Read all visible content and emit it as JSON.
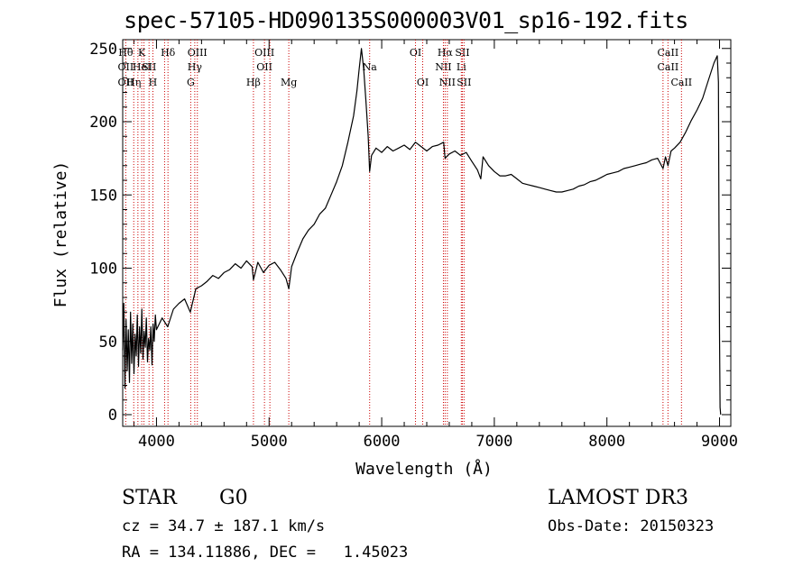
{
  "chart_data": {
    "type": "line",
    "title": "spec-57105-HD090135S000003V01_sp16-192.fits",
    "xlabel": "Wavelength (Å)",
    "ylabel": "Flux (relative)",
    "xlim": [
      3700,
      9100
    ],
    "ylim": [
      -8,
      256
    ],
    "xticks": [
      4000,
      5000,
      6000,
      7000,
      8000,
      9000
    ],
    "yticks": [
      0,
      50,
      100,
      150,
      200,
      250
    ],
    "grid": false,
    "series": [
      {
        "points": [
          [
            3700,
            44
          ],
          [
            3710,
            76
          ],
          [
            3720,
            18
          ],
          [
            3730,
            65
          ],
          [
            3740,
            30
          ],
          [
            3750,
            58
          ],
          [
            3760,
            22
          ],
          [
            3770,
            70
          ],
          [
            3780,
            35
          ],
          [
            3790,
            62
          ],
          [
            3800,
            28
          ],
          [
            3810,
            55
          ],
          [
            3820,
            40
          ],
          [
            3830,
            68
          ],
          [
            3840,
            33
          ],
          [
            3850,
            60
          ],
          [
            3860,
            42
          ],
          [
            3870,
            72
          ],
          [
            3880,
            38
          ],
          [
            3890,
            57
          ],
          [
            3900,
            46
          ],
          [
            3910,
            66
          ],
          [
            3920,
            36
          ],
          [
            3930,
            52
          ],
          [
            3940,
            44
          ],
          [
            3950,
            60
          ],
          [
            3960,
            34
          ],
          [
            3970,
            62
          ],
          [
            3980,
            50
          ],
          [
            3990,
            68
          ],
          [
            4000,
            58
          ],
          [
            4050,
            66
          ],
          [
            4100,
            60
          ],
          [
            4150,
            72
          ],
          [
            4200,
            76
          ],
          [
            4250,
            79
          ],
          [
            4300,
            70
          ],
          [
            4350,
            86
          ],
          [
            4400,
            88
          ],
          [
            4450,
            91
          ],
          [
            4500,
            95
          ],
          [
            4550,
            93
          ],
          [
            4600,
            97
          ],
          [
            4650,
            99
          ],
          [
            4700,
            103
          ],
          [
            4750,
            100
          ],
          [
            4800,
            105
          ],
          [
            4850,
            101
          ],
          [
            4861,
            92
          ],
          [
            4900,
            104
          ],
          [
            4950,
            97
          ],
          [
            5000,
            102
          ],
          [
            5050,
            104
          ],
          [
            5100,
            99
          ],
          [
            5150,
            93
          ],
          [
            5175,
            86
          ],
          [
            5200,
            101
          ],
          [
            5250,
            111
          ],
          [
            5300,
            120
          ],
          [
            5350,
            126
          ],
          [
            5400,
            130
          ],
          [
            5450,
            137
          ],
          [
            5500,
            141
          ],
          [
            5550,
            150
          ],
          [
            5600,
            159
          ],
          [
            5650,
            170
          ],
          [
            5700,
            186
          ],
          [
            5750,
            204
          ],
          [
            5780,
            221
          ],
          [
            5800,
            236
          ],
          [
            5820,
            250
          ],
          [
            5840,
            236
          ],
          [
            5860,
            214
          ],
          [
            5880,
            190
          ],
          [
            5893,
            166
          ],
          [
            5910,
            177
          ],
          [
            5950,
            182
          ],
          [
            6000,
            179
          ],
          [
            6050,
            183
          ],
          [
            6100,
            180
          ],
          [
            6150,
            182
          ],
          [
            6200,
            184
          ],
          [
            6250,
            181
          ],
          [
            6300,
            186
          ],
          [
            6350,
            183
          ],
          [
            6400,
            180
          ],
          [
            6450,
            183
          ],
          [
            6500,
            184
          ],
          [
            6550,
            186
          ],
          [
            6563,
            175
          ],
          [
            6600,
            178
          ],
          [
            6650,
            180
          ],
          [
            6700,
            177
          ],
          [
            6750,
            179
          ],
          [
            6800,
            173
          ],
          [
            6850,
            167
          ],
          [
            6880,
            161
          ],
          [
            6900,
            176
          ],
          [
            6950,
            170
          ],
          [
            7000,
            166
          ],
          [
            7050,
            163
          ],
          [
            7100,
            163
          ],
          [
            7150,
            164
          ],
          [
            7200,
            161
          ],
          [
            7250,
            158
          ],
          [
            7300,
            157
          ],
          [
            7350,
            156
          ],
          [
            7400,
            155
          ],
          [
            7450,
            154
          ],
          [
            7500,
            153
          ],
          [
            7550,
            152
          ],
          [
            7600,
            152
          ],
          [
            7650,
            153
          ],
          [
            7700,
            154
          ],
          [
            7750,
            156
          ],
          [
            7800,
            157
          ],
          [
            7850,
            159
          ],
          [
            7900,
            160
          ],
          [
            7950,
            162
          ],
          [
            8000,
            164
          ],
          [
            8050,
            165
          ],
          [
            8100,
            166
          ],
          [
            8150,
            168
          ],
          [
            8200,
            169
          ],
          [
            8250,
            170
          ],
          [
            8300,
            171
          ],
          [
            8350,
            172
          ],
          [
            8400,
            174
          ],
          [
            8450,
            175
          ],
          [
            8498,
            168
          ],
          [
            8520,
            176
          ],
          [
            8542,
            170
          ],
          [
            8570,
            180
          ],
          [
            8600,
            182
          ],
          [
            8650,
            186
          ],
          [
            8700,
            193
          ],
          [
            8750,
            201
          ],
          [
            8800,
            208
          ],
          [
            8850,
            216
          ],
          [
            8900,
            228
          ],
          [
            8950,
            240
          ],
          [
            8980,
            245
          ],
          [
            8990,
            227
          ],
          [
            8995,
            128
          ],
          [
            9000,
            55
          ],
          [
            9005,
            5
          ],
          [
            9010,
            0
          ]
        ]
      }
    ],
    "line_markers": [
      {
        "wl": 3727,
        "labels": [
          "Hθ",
          "OII",
          "OII"
        ]
      },
      {
        "wl": 3798,
        "labels": [
          "",
          "",
          "Hη"
        ]
      },
      {
        "wl": 3835,
        "labels": [
          "",
          "",
          ""
        ]
      },
      {
        "wl": 3869,
        "labels": [
          "K",
          "HeI",
          ""
        ]
      },
      {
        "wl": 3889,
        "labels": [
          "",
          "",
          ""
        ]
      },
      {
        "wl": 3934,
        "labels": [
          "",
          "SII",
          ""
        ]
      },
      {
        "wl": 3968,
        "labels": [
          "",
          "",
          "H"
        ]
      },
      {
        "wl": 4072,
        "labels": [
          "",
          "",
          ""
        ]
      },
      {
        "wl": 4102,
        "labels": [
          "Hδ",
          "",
          ""
        ]
      },
      {
        "wl": 4304,
        "labels": [
          "",
          "",
          "G"
        ]
      },
      {
        "wl": 4340,
        "labels": [
          "",
          "Hγ",
          ""
        ]
      },
      {
        "wl": 4363,
        "labels": [
          "OIII",
          "",
          ""
        ]
      },
      {
        "wl": 4861,
        "labels": [
          "",
          "",
          "Hβ"
        ]
      },
      {
        "wl": 4959,
        "labels": [
          "OIII",
          "OII",
          ""
        ]
      },
      {
        "wl": 5007,
        "labels": [
          "",
          "",
          ""
        ]
      },
      {
        "wl": 5175,
        "labels": [
          "",
          "",
          "Mg"
        ]
      },
      {
        "wl": 5893,
        "labels": [
          "",
          "Na",
          ""
        ]
      },
      {
        "wl": 6300,
        "labels": [
          "OI",
          "",
          ""
        ]
      },
      {
        "wl": 6364,
        "labels": [
          "",
          "",
          "OI"
        ]
      },
      {
        "wl": 6548,
        "labels": [
          "",
          "NII",
          ""
        ]
      },
      {
        "wl": 6563,
        "labels": [
          "Hα",
          "",
          ""
        ]
      },
      {
        "wl": 6583,
        "labels": [
          "",
          "",
          "NII"
        ]
      },
      {
        "wl": 6707,
        "labels": [
          "",
          "Li",
          ""
        ]
      },
      {
        "wl": 6716,
        "labels": [
          "SII",
          "",
          ""
        ]
      },
      {
        "wl": 6731,
        "labels": [
          "",
          "",
          "SII"
        ]
      },
      {
        "wl": 8498,
        "labels": [
          "",
          "",
          ""
        ]
      },
      {
        "wl": 8542,
        "labels": [
          "CaII",
          "CaII",
          ""
        ]
      },
      {
        "wl": 8662,
        "labels": [
          "",
          "",
          "CaII"
        ]
      }
    ],
    "marker_color": "#cc0000",
    "line_color": "#000000"
  },
  "info": {
    "object_class": "STAR",
    "subclass": "G0",
    "survey": "LAMOST DR3",
    "redshift": "cz = 34.7 ± 187.1 km/s",
    "obs_date": "Obs-Date: 20150323",
    "coords": "RA = 134.11886, DEC =   1.45023"
  }
}
